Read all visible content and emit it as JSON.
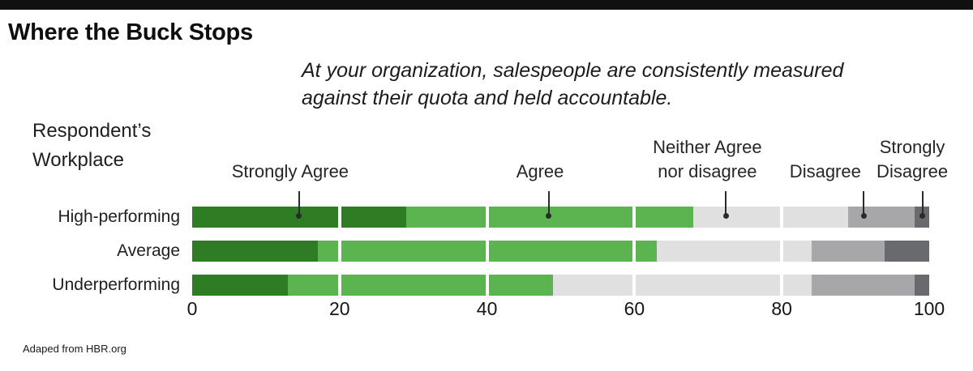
{
  "header": {
    "title": "Where the Buck Stops",
    "subtitle_line1": "At your organization, salespeople are consistently measured",
    "subtitle_line2": "against their quota and held accountable."
  },
  "footer": {
    "credit": "Adaped from HBR.org"
  },
  "chart_data": {
    "type": "bar",
    "variant": "horizontal-stacked",
    "title": "Where the Buck Stops",
    "subtitle": "At your organization, salespeople are consistently measured against their quota and held accountable.",
    "group_axis_label": "Respondent’s Workplace",
    "categories": [
      "High-performing",
      "Average",
      "Underperforming"
    ],
    "series": [
      {
        "name": "Strongly Agree",
        "color": "#2e7d25",
        "values": [
          29,
          17,
          13
        ]
      },
      {
        "name": "Agree",
        "color": "#5cb451",
        "values": [
          39,
          46,
          36
        ]
      },
      {
        "name": "Neither Agree nor disagree",
        "color": "#e0e0e0",
        "values": [
          21,
          21,
          35
        ]
      },
      {
        "name": "Disagree",
        "color": "#a7a7aa",
        "values": [
          9,
          10,
          14
        ]
      },
      {
        "name": "Strongly Disagree",
        "color": "#696a6d",
        "values": [
          2,
          6,
          2
        ]
      }
    ],
    "xlim": [
      0,
      100
    ],
    "x_ticks": [
      0,
      20,
      40,
      60,
      80,
      100
    ],
    "gridlines_at": [
      20,
      40,
      60,
      80
    ],
    "gridline_color": "#ffffff",
    "pointer_color": "#2b2b2b",
    "legend_position": "callout-labels-above-top-bar",
    "annotations": [
      {
        "lines": [
          "Strongly Agree"
        ],
        "label_x": 13.3,
        "pointer_x": 14.5
      },
      {
        "lines": [
          "Agree"
        ],
        "label_x": 47.2,
        "pointer_x": 48.4
      },
      {
        "lines": [
          "Neither Agree",
          "nor disagree"
        ],
        "label_x": 69.9,
        "pointer_x": 72.4
      },
      {
        "lines": [
          "Disagree"
        ],
        "label_x": 85.9,
        "pointer_x": 91.1
      },
      {
        "lines": [
          "Strongly",
          "Disagree"
        ],
        "label_x": 97.7,
        "pointer_x": 99.1
      }
    ]
  }
}
